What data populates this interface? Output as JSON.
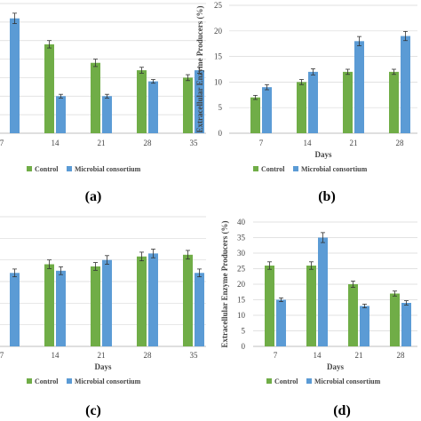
{
  "colors": {
    "control": "#70ad47",
    "consortium": "#5b9bd5",
    "grid": "#d9d9d9",
    "axis": "#bfbfbf",
    "errorbar": "#333333"
  },
  "chart_data": [
    {
      "type": "bar",
      "panel_label": "(a)",
      "xlabel": "",
      "ylabel": "",
      "categories": [
        "7",
        "14",
        "21",
        "28",
        "35"
      ],
      "ylim": [
        0,
        35
      ],
      "yticks": [],
      "series": [
        {
          "name": "Control",
          "values": [
            null,
            24,
            19,
            17,
            15
          ]
        },
        {
          "name": "Microbial consortium",
          "values": [
            31,
            10,
            10,
            14,
            17
          ]
        }
      ],
      "errors": [
        [
          null,
          1,
          1,
          0.8,
          0.8
        ],
        [
          1.4,
          0.5,
          0.5,
          0.5,
          0.8
        ]
      ],
      "grid": true,
      "legend": "bottom"
    },
    {
      "type": "bar",
      "panel_label": "(b)",
      "xlabel": "Days",
      "ylabel": "Extracellular Enzyme Producers (%)",
      "categories": [
        "7",
        "14",
        "21",
        "28"
      ],
      "ylim": [
        0,
        25
      ],
      "yticks": [
        0,
        5,
        10,
        15,
        20,
        25
      ],
      "series": [
        {
          "name": "Control",
          "values": [
            7,
            10,
            12,
            12
          ]
        },
        {
          "name": "Microbial consortium",
          "values": [
            9,
            12,
            18,
            19
          ]
        }
      ],
      "errors": [
        [
          0.4,
          0.5,
          0.5,
          0.5
        ],
        [
          0.5,
          0.6,
          0.9,
          0.9
        ]
      ],
      "grid": true,
      "legend": "bottom"
    },
    {
      "type": "bar",
      "panel_label": "(c)",
      "xlabel": "Days",
      "ylabel": "",
      "categories": [
        "7",
        "14",
        "21",
        "28",
        "35"
      ],
      "ylim": [
        0,
        30
      ],
      "yticks": [],
      "series": [
        {
          "name": "Control",
          "values": [
            null,
            19,
            18.5,
            20.8,
            21.2
          ]
        },
        {
          "name": "Microbial consortium",
          "values": [
            17,
            17.5,
            20,
            21.5,
            17
          ]
        }
      ],
      "errors": [
        [
          null,
          1,
          0.9,
          1,
          1
        ],
        [
          0.9,
          0.9,
          1,
          1,
          0.9
        ]
      ],
      "grid": true,
      "legend": "bottom"
    },
    {
      "type": "bar",
      "panel_label": "(d)",
      "xlabel": "Days",
      "ylabel": "Extracellular Enzyme Producers (%)",
      "categories": [
        "7",
        "14",
        "21",
        "28"
      ],
      "ylim": [
        0,
        40
      ],
      "yticks": [
        0,
        5,
        10,
        15,
        20,
        25,
        30,
        35,
        40
      ],
      "series": [
        {
          "name": "Control",
          "values": [
            26,
            26,
            20,
            17
          ]
        },
        {
          "name": "Microbial consortium",
          "values": [
            15,
            35,
            13,
            14
          ]
        }
      ],
      "errors": [
        [
          1.2,
          1.2,
          1,
          0.8
        ],
        [
          0.6,
          1.6,
          0.6,
          0.7
        ]
      ],
      "grid": true,
      "legend": "bottom"
    }
  ]
}
